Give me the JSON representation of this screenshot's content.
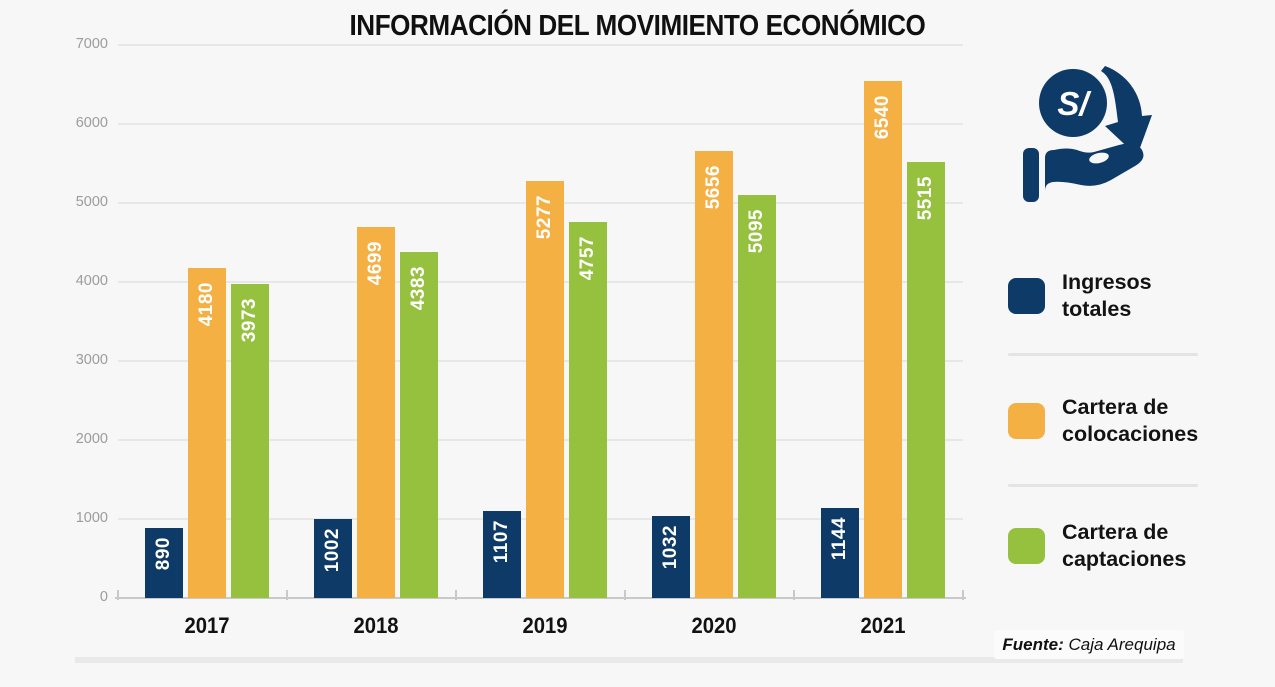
{
  "title": "INFORMACIÓN DEL MOVIMIENTO ECONÓMICO",
  "chart_data": {
    "type": "bar",
    "title": "INFORMACIÓN DEL MOVIMIENTO ECONÓMICO",
    "categories": [
      "2017",
      "2018",
      "2019",
      "2020",
      "2021"
    ],
    "series": [
      {
        "name": "Ingresos totales",
        "color": "#0d3a66",
        "values": [
          890,
          1002,
          1107,
          1032,
          1144
        ]
      },
      {
        "name": "Cartera de colocaciones",
        "color": "#f5b044",
        "values": [
          4180,
          4699,
          5277,
          5656,
          6540
        ]
      },
      {
        "name": "Cartera de captaciones",
        "color": "#95c13e",
        "values": [
          3973,
          4383,
          4757,
          5095,
          5515
        ]
      }
    ],
    "ylim": [
      0,
      7000
    ],
    "yticks": [
      0,
      1000,
      2000,
      3000,
      4000,
      5000,
      6000,
      7000
    ],
    "grid": true,
    "bar_labels": "values-inside-top-rotated",
    "legend_position": "right"
  },
  "legend": {
    "items": [
      {
        "label": "Ingresos\ntotales",
        "color": "#0d3a66"
      },
      {
        "label": "Cartera de\ncolocaciones",
        "color": "#f5b044"
      },
      {
        "label": "Cartera de\ncaptaciones",
        "color": "#95c13e"
      }
    ]
  },
  "icon": {
    "name": "money-hand-icon",
    "currency_symbol": "S/",
    "color": "#0d3a66"
  },
  "source": {
    "prefix": "Fuente:",
    "text": " Caja Arequipa"
  },
  "colors": {
    "background": "#f7f7f7",
    "grid": "#e7e7e7",
    "axis": "#c9c9c9",
    "ytick_label": "#9c9c9c",
    "text": "#121212",
    "bar_value_label": "#ffffff"
  }
}
